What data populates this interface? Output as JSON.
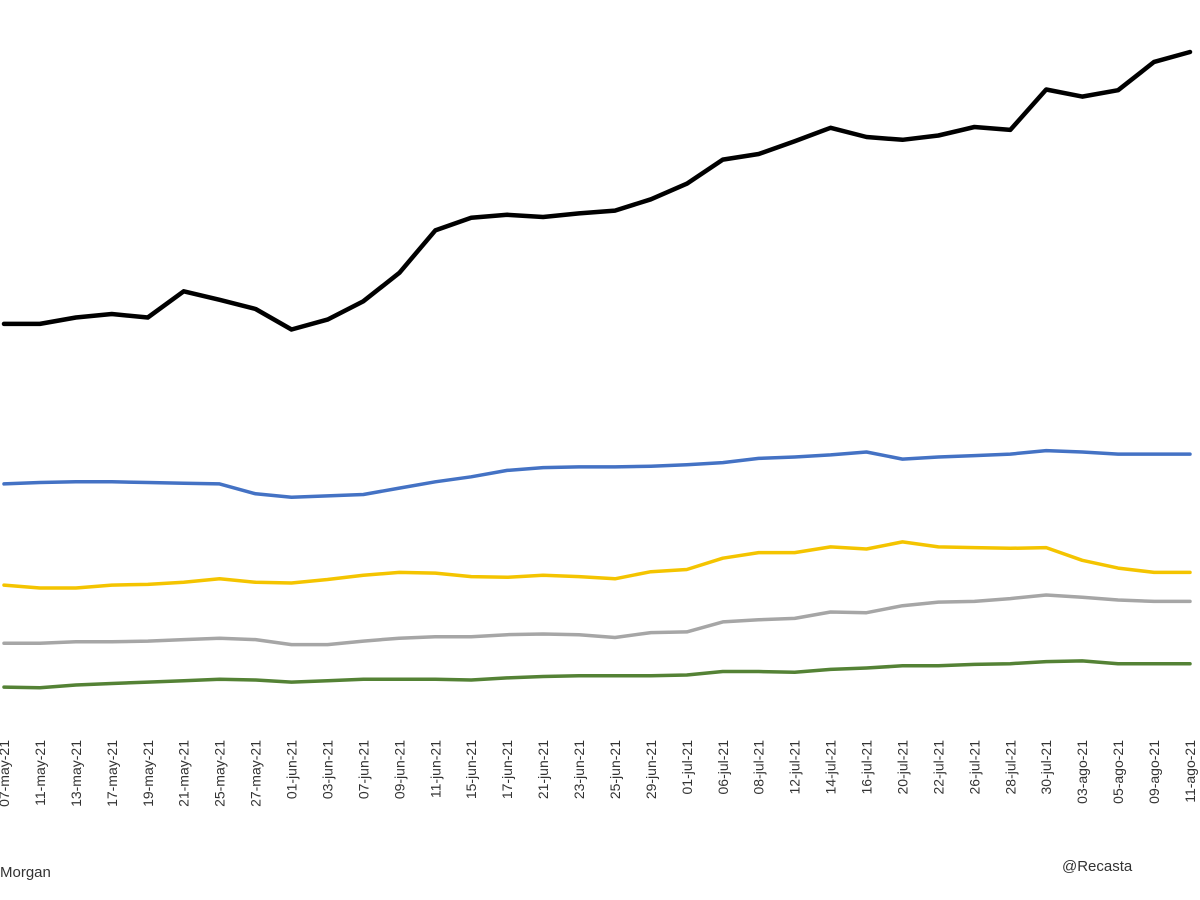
{
  "chart_data": {
    "type": "line",
    "title": "",
    "xlabel": "",
    "ylabel": "",
    "grid": false,
    "legend": "none",
    "ylim": [
      0,
      1
    ],
    "categories": [
      "07-may-21",
      "11-may-21",
      "13-may-21",
      "17-may-21",
      "19-may-21",
      "21-may-21",
      "25-may-21",
      "27-may-21",
      "01-jun-21",
      "03-jun-21",
      "07-jun-21",
      "09-jun-21",
      "11-jun-21",
      "15-jun-21",
      "17-jun-21",
      "21-jun-21",
      "23-jun-21",
      "25-jun-21",
      "29-jun-21",
      "01-jul-21",
      "06-jul-21",
      "08-jul-21",
      "12-jul-21",
      "14-jul-21",
      "16-jul-21",
      "20-jul-21",
      "22-jul-21",
      "26-jul-21",
      "28-jul-21",
      "30-jul-21",
      "03-ago-21",
      "05-ago-21",
      "09-ago-21",
      "11-ago-21"
    ],
    "series": [
      {
        "color": "#000000",
        "values": [
          0.616,
          0.616,
          0.625,
          0.63,
          0.625,
          0.662,
          0.65,
          0.637,
          0.608,
          0.622,
          0.648,
          0.688,
          0.748,
          0.766,
          0.77,
          0.767,
          0.772,
          0.776,
          0.792,
          0.814,
          0.848,
          0.856,
          0.874,
          0.893,
          0.88,
          0.876,
          0.882,
          0.894,
          0.89,
          0.947,
          0.937,
          0.946,
          0.986,
          1.0
        ]
      },
      {
        "color": "#4472C4",
        "values": [
          0.39,
          0.392,
          0.393,
          0.393,
          0.392,
          0.391,
          0.39,
          0.376,
          0.371,
          0.373,
          0.375,
          0.384,
          0.393,
          0.4,
          0.409,
          0.413,
          0.414,
          0.414,
          0.415,
          0.417,
          0.42,
          0.426,
          0.428,
          0.431,
          0.435,
          0.425,
          0.428,
          0.43,
          0.432,
          0.437,
          0.435,
          0.432,
          0.432,
          0.432
        ]
      },
      {
        "color": "#F4C400",
        "values": [
          0.247,
          0.243,
          0.243,
          0.247,
          0.248,
          0.251,
          0.256,
          0.251,
          0.25,
          0.255,
          0.261,
          0.265,
          0.264,
          0.259,
          0.258,
          0.261,
          0.259,
          0.256,
          0.266,
          0.269,
          0.285,
          0.293,
          0.293,
          0.301,
          0.298,
          0.308,
          0.301,
          0.3,
          0.299,
          0.3,
          0.282,
          0.271,
          0.265,
          0.265
        ]
      },
      {
        "color": "#A6A6A6",
        "values": [
          0.165,
          0.165,
          0.167,
          0.167,
          0.168,
          0.17,
          0.172,
          0.17,
          0.163,
          0.163,
          0.168,
          0.172,
          0.174,
          0.174,
          0.177,
          0.178,
          0.177,
          0.173,
          0.18,
          0.181,
          0.195,
          0.198,
          0.2,
          0.209,
          0.208,
          0.218,
          0.223,
          0.224,
          0.228,
          0.233,
          0.23,
          0.226,
          0.224,
          0.224
        ]
      },
      {
        "color": "#548235",
        "values": [
          0.103,
          0.102,
          0.106,
          0.108,
          0.11,
          0.112,
          0.114,
          0.113,
          0.11,
          0.112,
          0.114,
          0.114,
          0.114,
          0.113,
          0.116,
          0.118,
          0.119,
          0.119,
          0.119,
          0.12,
          0.125,
          0.125,
          0.124,
          0.128,
          0.13,
          0.133,
          0.133,
          0.135,
          0.136,
          0.139,
          0.14,
          0.136,
          0.136,
          0.136
        ]
      }
    ],
    "notes": {
      "left": "Morgan",
      "right": "@Recasta"
    }
  }
}
